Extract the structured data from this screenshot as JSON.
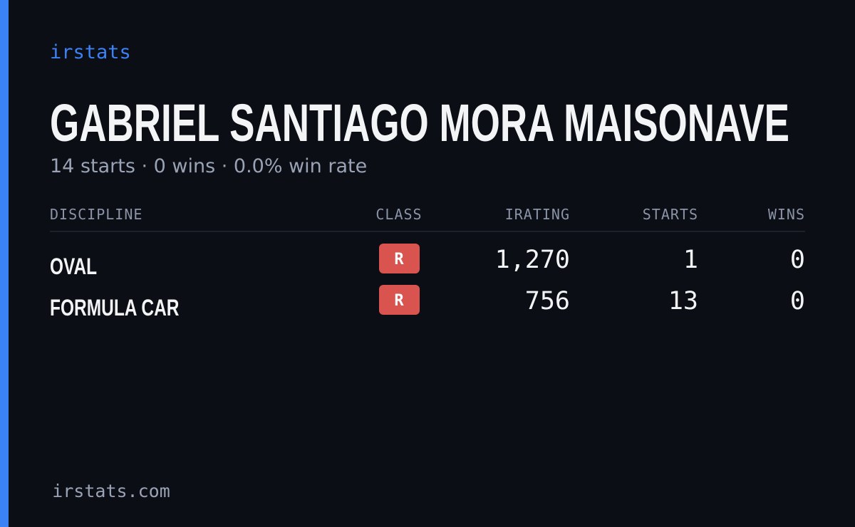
{
  "brand": "irstats",
  "driver": {
    "name": "GABRIEL SANTIAGO MORA MAISONAVE",
    "summary": "14 starts · 0 wins · 0.0% win rate"
  },
  "table": {
    "headers": [
      "DISCIPLINE",
      "CLASS",
      "IRATING",
      "STARTS",
      "WINS"
    ],
    "rows": [
      [
        "OVAL",
        "R",
        "1,270",
        "1",
        "0"
      ],
      [
        "FORMULA CAR",
        "R",
        "756",
        "13",
        "0"
      ]
    ]
  },
  "footer": "irstats.com"
}
